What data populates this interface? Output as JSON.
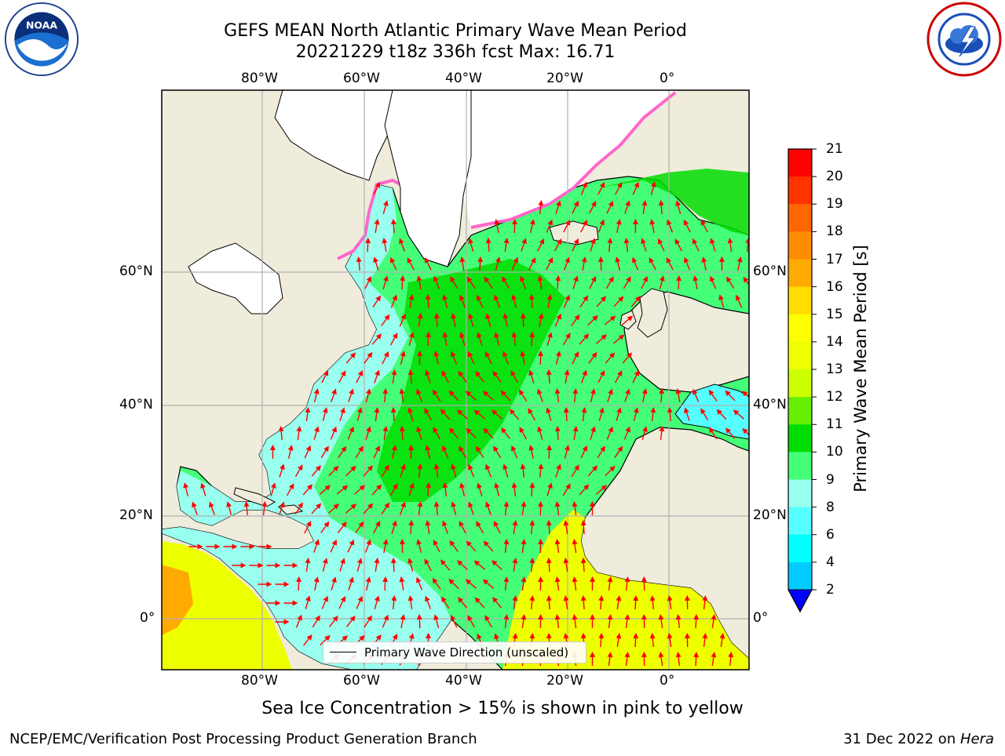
{
  "title": {
    "line1": "GEFS MEAN North Atlantic Primary Wave Mean Period",
    "line2": "20221229 t18z 336h fcst   Max: 16.71"
  },
  "logos": {
    "left": "noaa-logo",
    "right": "nws-logo"
  },
  "map": {
    "lon_ticks_top": [
      "80°W",
      "60°W",
      "40°W",
      "20°W",
      "0°"
    ],
    "lon_ticks_bottom": [
      "80°W",
      "60°W",
      "40°W",
      "20°W",
      "0°"
    ],
    "lat_ticks_left": [
      "60°N",
      "40°N",
      "20°N",
      "0°"
    ],
    "lat_ticks_right": [
      "60°N",
      "40°N",
      "20°N",
      "0°"
    ],
    "colors": {
      "land": "#efecdc",
      "ice": "#ffffff",
      "arrow": "#ff0000",
      "grid": "#b0b0b0"
    }
  },
  "legend": {
    "label": "Primary Wave Direction (unscaled)"
  },
  "colorbar": {
    "label": "Primary Wave Mean Period [s]",
    "ticks": [
      "21",
      "20",
      "19",
      "18",
      "17",
      "16",
      "15",
      "14",
      "13",
      "12",
      "11",
      "10",
      "9",
      "8",
      "6",
      "4",
      "2"
    ],
    "colors": [
      "#ff0000",
      "#ff3300",
      "#ff6600",
      "#ff8c00",
      "#ffaa00",
      "#ffdd00",
      "#ffff00",
      "#eeff00",
      "#ccff00",
      "#66ee00",
      "#00dd00",
      "#44ff77",
      "#99ffee",
      "#55ffff",
      "#00ffff",
      "#00ccff",
      "#0077ff"
    ],
    "extend_color": "#0000ff"
  },
  "notes": {
    "ice": "Sea Ice Concentration > 15% is shown in pink to yellow"
  },
  "footer": {
    "left": "NCEP/EMC/Verification Post Processing Product Generation Branch",
    "date": "31 Dec 2022 on ",
    "machine": "Hera"
  }
}
